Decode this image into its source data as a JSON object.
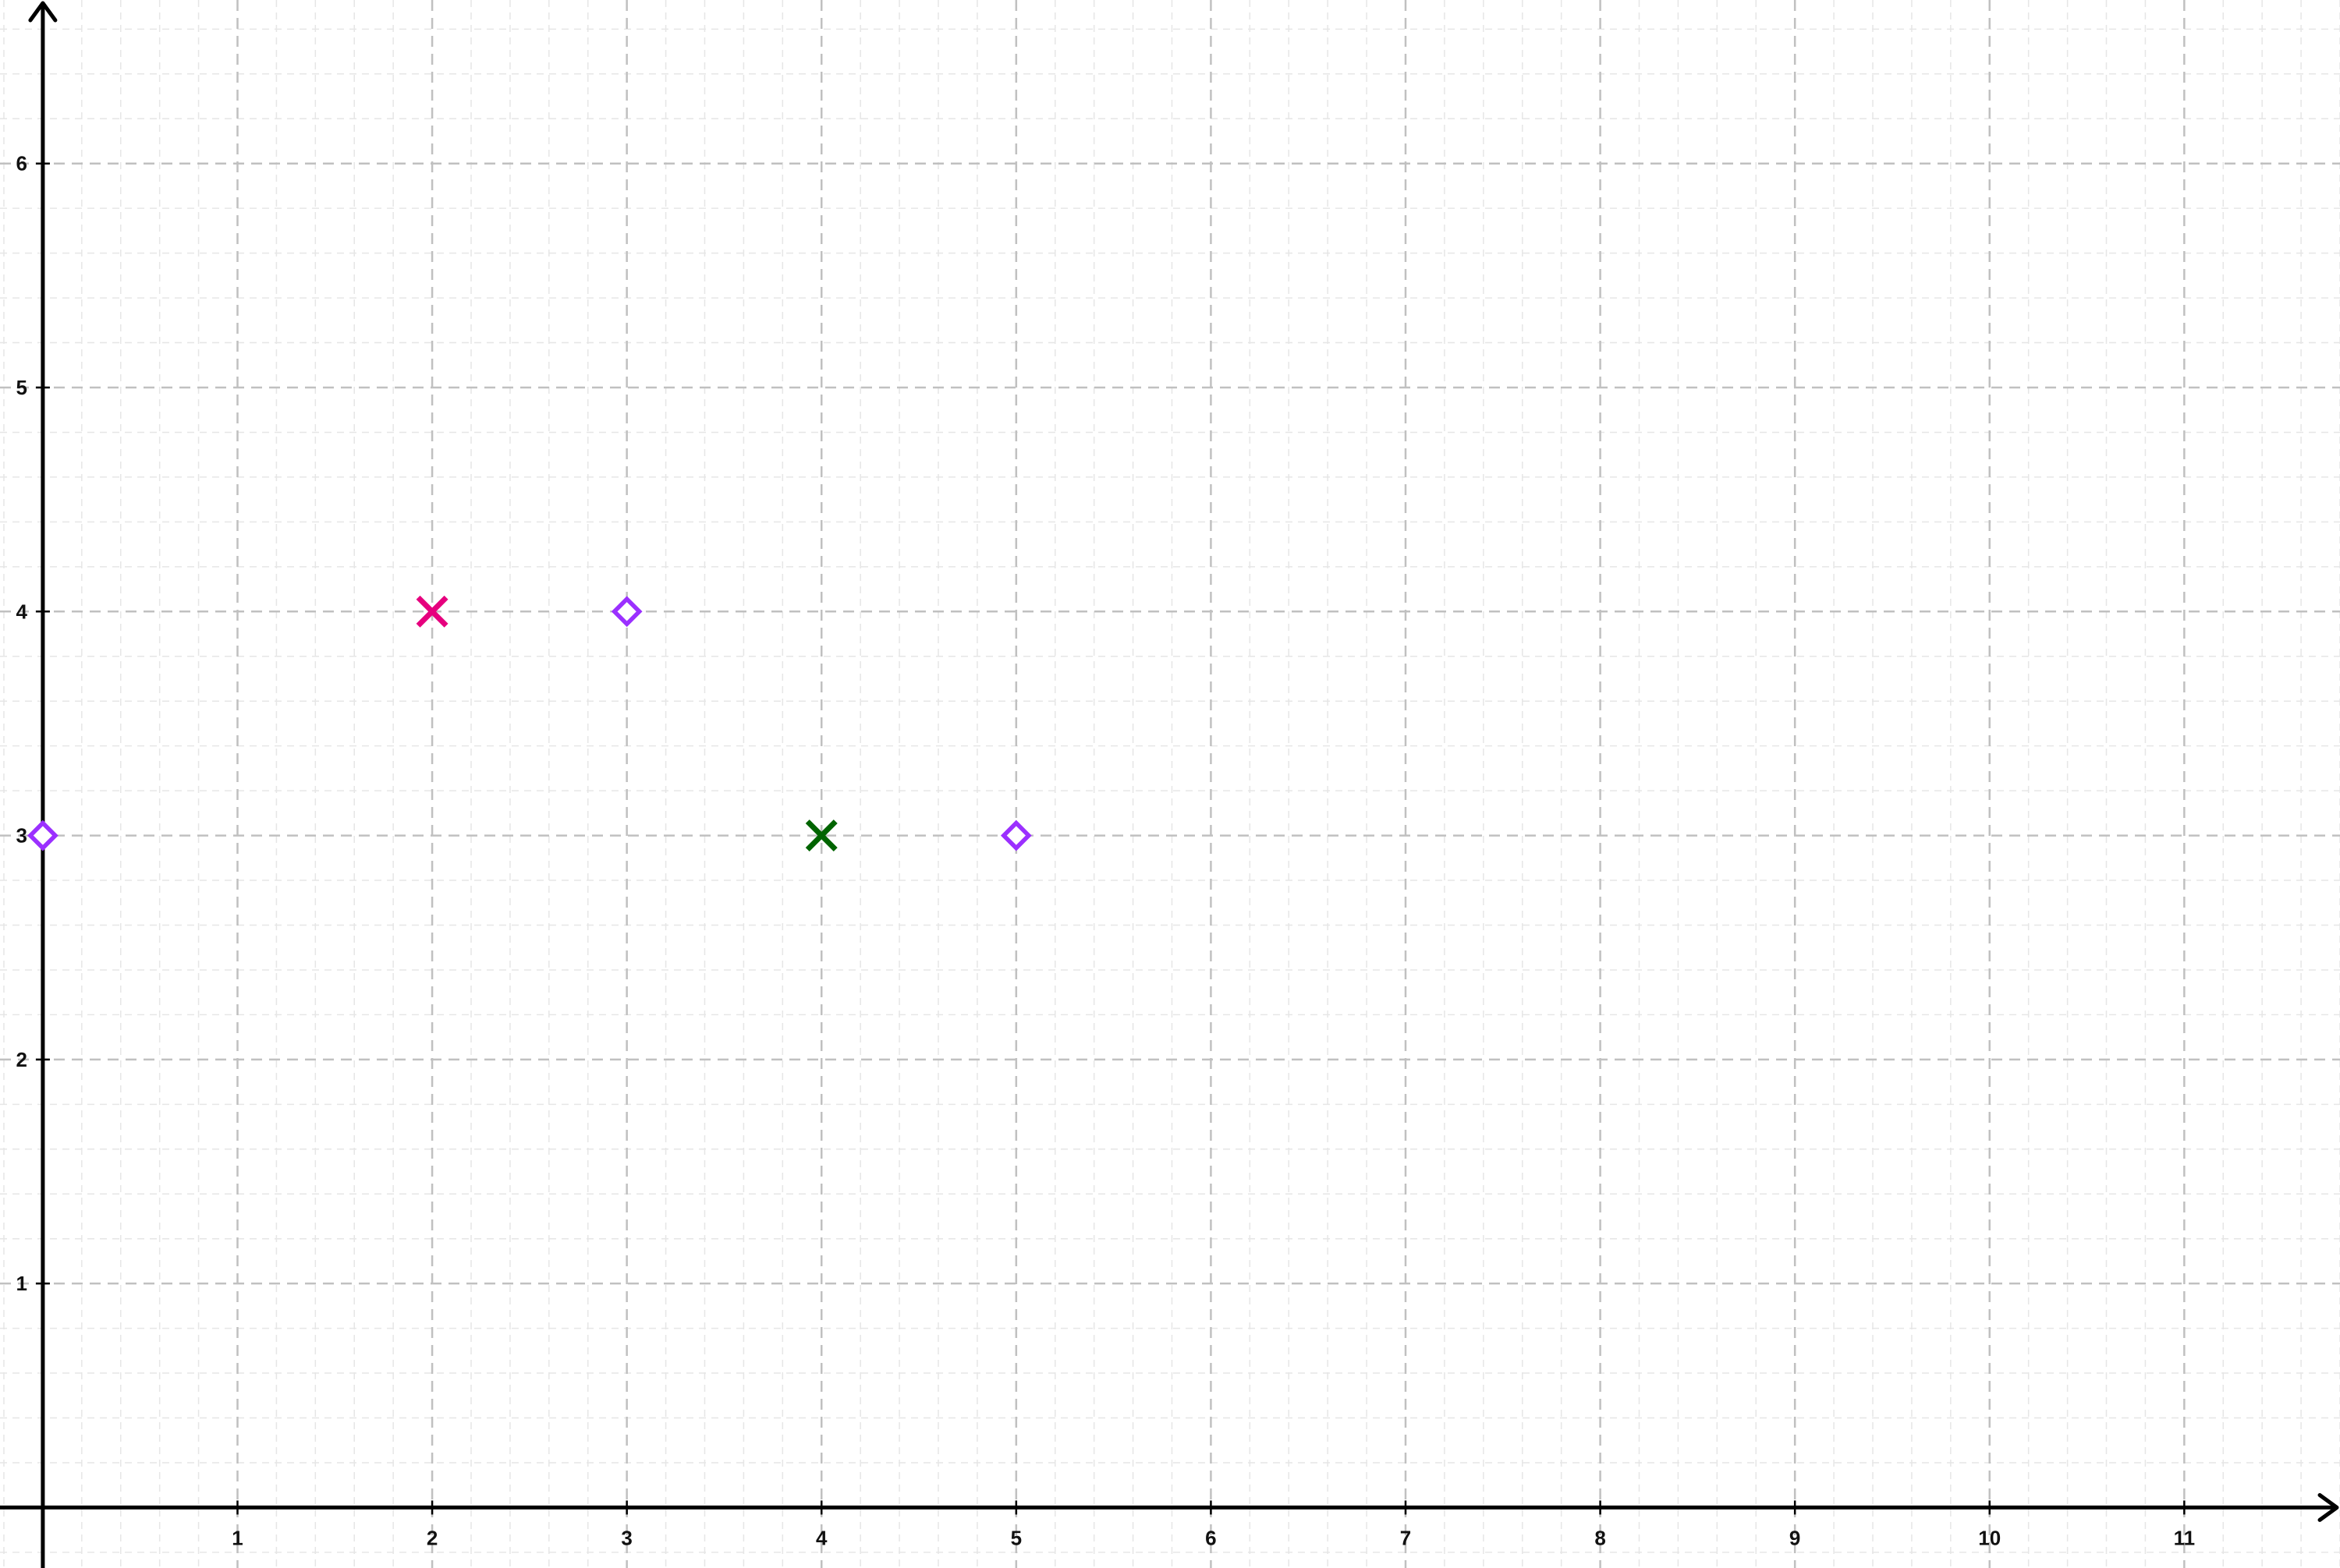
{
  "chart_data": {
    "type": "scatter",
    "title": "",
    "xlabel": "",
    "ylabel": "",
    "xlim": [
      -0.22,
      11.8
    ],
    "ylim": [
      -0.27,
      6.73
    ],
    "x_ticks": [
      "1",
      "2",
      "3",
      "4",
      "5",
      "6",
      "7",
      "8",
      "9",
      "10",
      "11"
    ],
    "y_ticks": [
      "1",
      "2",
      "3",
      "4",
      "5",
      "6"
    ],
    "grid": true,
    "legend": "none",
    "points": [
      {
        "x": 0,
        "y": 3,
        "marker": "diamond",
        "color": "#9b30ff"
      },
      {
        "x": 2,
        "y": 4,
        "marker": "x",
        "color": "#e6007e"
      },
      {
        "x": 3,
        "y": 4,
        "marker": "diamond",
        "color": "#9b30ff"
      },
      {
        "x": 4,
        "y": 3,
        "marker": "x",
        "color": "#006400"
      },
      {
        "x": 5,
        "y": 3,
        "marker": "diamond",
        "color": "#9b30ff"
      }
    ],
    "colors": {
      "axis": "#000000",
      "major_grid": "#c0c0c0",
      "minor_grid": "#e6e6e6"
    }
  }
}
